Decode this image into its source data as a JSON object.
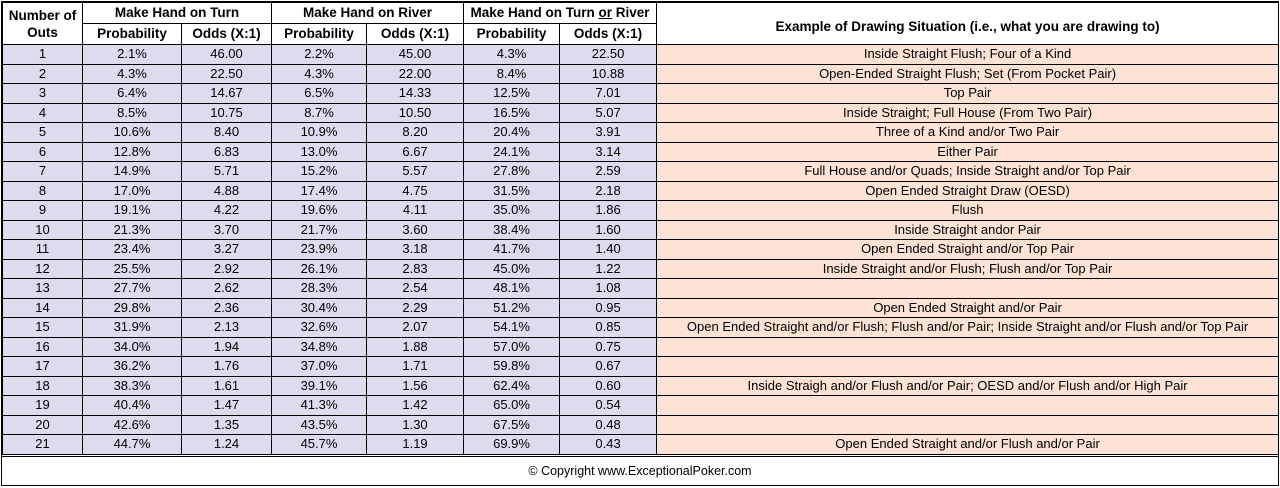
{
  "headers": {
    "outs_line1": "Number of",
    "outs_line2": "Outs",
    "turn_title": "Make Hand on Turn",
    "river_title": "Make Hand on River",
    "either_title_a": "Make Hand on Turn ",
    "either_title_or": "or",
    "either_title_b": " River",
    "probability": "Probability",
    "odds": "Odds (X:1)",
    "example": "Example of Drawing Situation (i.e., what you are drawing to)"
  },
  "rows": [
    {
      "outs": "1",
      "turn_prob": "2.1%",
      "turn_odds": "46.00",
      "river_prob": "2.2%",
      "river_odds": "45.00",
      "either_prob": "4.3%",
      "either_odds": "22.50",
      "example": "Inside Straight Flush; Four of a Kind"
    },
    {
      "outs": "2",
      "turn_prob": "4.3%",
      "turn_odds": "22.50",
      "river_prob": "4.3%",
      "river_odds": "22.00",
      "either_prob": "8.4%",
      "either_odds": "10.88",
      "example": "Open-Ended Straight Flush; Set (From Pocket Pair)"
    },
    {
      "outs": "3",
      "turn_prob": "6.4%",
      "turn_odds": "14.67",
      "river_prob": "6.5%",
      "river_odds": "14.33",
      "either_prob": "12.5%",
      "either_odds": "7.01",
      "example": "Top Pair"
    },
    {
      "outs": "4",
      "turn_prob": "8.5%",
      "turn_odds": "10.75",
      "river_prob": "8.7%",
      "river_odds": "10.50",
      "either_prob": "16.5%",
      "either_odds": "5.07",
      "example": "Inside Straight; Full House (From Two Pair)"
    },
    {
      "outs": "5",
      "turn_prob": "10.6%",
      "turn_odds": "8.40",
      "river_prob": "10.9%",
      "river_odds": "8.20",
      "either_prob": "20.4%",
      "either_odds": "3.91",
      "example": "Three of a Kind and/or Two Pair"
    },
    {
      "outs": "6",
      "turn_prob": "12.8%",
      "turn_odds": "6.83",
      "river_prob": "13.0%",
      "river_odds": "6.67",
      "either_prob": "24.1%",
      "either_odds": "3.14",
      "example": "Either Pair"
    },
    {
      "outs": "7",
      "turn_prob": "14.9%",
      "turn_odds": "5.71",
      "river_prob": "15.2%",
      "river_odds": "5.57",
      "either_prob": "27.8%",
      "either_odds": "2.59",
      "example": "Full House and/or Quads; Inside Straight and/or Top Pair"
    },
    {
      "outs": "8",
      "turn_prob": "17.0%",
      "turn_odds": "4.88",
      "river_prob": "17.4%",
      "river_odds": "4.75",
      "either_prob": "31.5%",
      "either_odds": "2.18",
      "example": "Open Ended Straight Draw (OESD)"
    },
    {
      "outs": "9",
      "turn_prob": "19.1%",
      "turn_odds": "4.22",
      "river_prob": "19.6%",
      "river_odds": "4.11",
      "either_prob": "35.0%",
      "either_odds": "1.86",
      "example": "Flush"
    },
    {
      "outs": "10",
      "turn_prob": "21.3%",
      "turn_odds": "3.70",
      "river_prob": "21.7%",
      "river_odds": "3.60",
      "either_prob": "38.4%",
      "either_odds": "1.60",
      "example": "Inside Straight andor Pair"
    },
    {
      "outs": "11",
      "turn_prob": "23.4%",
      "turn_odds": "3.27",
      "river_prob": "23.9%",
      "river_odds": "3.18",
      "either_prob": "41.7%",
      "either_odds": "1.40",
      "example": "Open Ended Straight and/or Top Pair"
    },
    {
      "outs": "12",
      "turn_prob": "25.5%",
      "turn_odds": "2.92",
      "river_prob": "26.1%",
      "river_odds": "2.83",
      "either_prob": "45.0%",
      "either_odds": "1.22",
      "example": "Inside Straight and/or Flush; Flush and/or Top Pair"
    },
    {
      "outs": "13",
      "turn_prob": "27.7%",
      "turn_odds": "2.62",
      "river_prob": "28.3%",
      "river_odds": "2.54",
      "either_prob": "48.1%",
      "either_odds": "1.08",
      "example": ""
    },
    {
      "outs": "14",
      "turn_prob": "29.8%",
      "turn_odds": "2.36",
      "river_prob": "30.4%",
      "river_odds": "2.29",
      "either_prob": "51.2%",
      "either_odds": "0.95",
      "example": "Open Ended Straight and/or Pair"
    },
    {
      "outs": "15",
      "turn_prob": "31.9%",
      "turn_odds": "2.13",
      "river_prob": "32.6%",
      "river_odds": "2.07",
      "either_prob": "54.1%",
      "either_odds": "0.85",
      "example": "Open Ended Straight and/or Flush; Flush and/or Pair; Inside Straight and/or Flush and/or Top Pair"
    },
    {
      "outs": "16",
      "turn_prob": "34.0%",
      "turn_odds": "1.94",
      "river_prob": "34.8%",
      "river_odds": "1.88",
      "either_prob": "57.0%",
      "either_odds": "0.75",
      "example": ""
    },
    {
      "outs": "17",
      "turn_prob": "36.2%",
      "turn_odds": "1.76",
      "river_prob": "37.0%",
      "river_odds": "1.71",
      "either_prob": "59.8%",
      "either_odds": "0.67",
      "example": ""
    },
    {
      "outs": "18",
      "turn_prob": "38.3%",
      "turn_odds": "1.61",
      "river_prob": "39.1%",
      "river_odds": "1.56",
      "either_prob": "62.4%",
      "either_odds": "0.60",
      "example": "Inside Straigh and/or Flush and/or Pair; OESD and/or Flush and/or High Pair"
    },
    {
      "outs": "19",
      "turn_prob": "40.4%",
      "turn_odds": "1.47",
      "river_prob": "41.3%",
      "river_odds": "1.42",
      "either_prob": "65.0%",
      "either_odds": "0.54",
      "example": ""
    },
    {
      "outs": "20",
      "turn_prob": "42.6%",
      "turn_odds": "1.35",
      "river_prob": "43.5%",
      "river_odds": "1.30",
      "either_prob": "67.5%",
      "either_odds": "0.48",
      "example": ""
    },
    {
      "outs": "21",
      "turn_prob": "44.7%",
      "turn_odds": "1.24",
      "river_prob": "45.7%",
      "river_odds": "1.19",
      "either_prob": "69.9%",
      "either_odds": "0.43",
      "example": "Open Ended Straight and/or Flush and/or Pair"
    }
  ],
  "footer": "© Copyright www.ExceptionalPoker.com",
  "colors": {
    "row_fill": "#dcdcee",
    "example_fill": "#fbe2d5",
    "border": "#000000"
  }
}
